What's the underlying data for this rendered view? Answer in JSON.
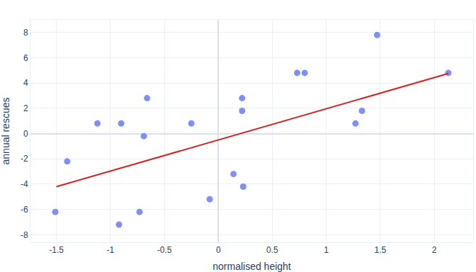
{
  "chart_data": {
    "type": "scatter",
    "x_label": "normalised height",
    "y_label": "annual rescues",
    "xlim": [
      -1.74,
      2.36
    ],
    "ylim": [
      -8.6,
      9.0
    ],
    "xticks": [
      -1.5,
      -1,
      -0.5,
      0,
      0.5,
      1,
      1.5,
      2
    ],
    "yticks": [
      -8,
      -6,
      -4,
      -2,
      0,
      2,
      4,
      6,
      8
    ],
    "grid": true,
    "series": [
      {
        "type": "scatter",
        "marker": "circle",
        "color": "#7f8ff7",
        "x": [
          -1.51,
          -1.4,
          -1.12,
          -0.9,
          -0.92,
          -0.66,
          -0.69,
          -0.73,
          -0.25,
          -0.08,
          0.14,
          0.22,
          0.22,
          0.23,
          0.73,
          0.8,
          1.27,
          1.33,
          1.47,
          2.13
        ],
        "values": [
          -6.2,
          -2.2,
          0.8,
          0.8,
          -7.2,
          2.8,
          -0.2,
          -6.2,
          0.8,
          -5.2,
          -3.2,
          2.8,
          1.8,
          -4.2,
          4.8,
          4.8,
          0.8,
          1.8,
          7.8,
          4.8
        ]
      },
      {
        "type": "line",
        "line_style": "solid",
        "color": "#d62020",
        "x": [
          -1.5,
          2.13
        ],
        "values": [
          -4.2,
          4.75
        ]
      }
    ]
  }
}
